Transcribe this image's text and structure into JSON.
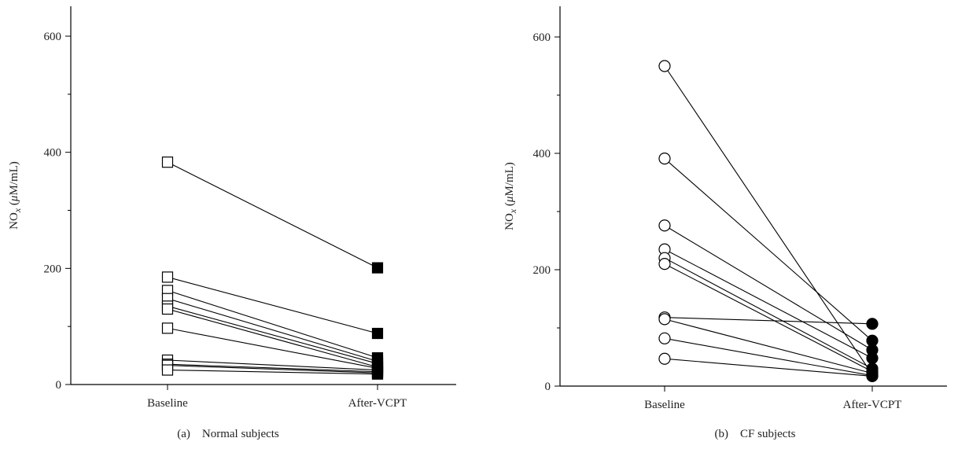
{
  "chart_data": [
    {
      "type": "line",
      "panel": "a",
      "caption_prefix": "(a)",
      "caption": "Normal subjects",
      "categories": [
        "Baseline",
        "After-VCPT"
      ],
      "ylabel_main": "NO",
      "ylabel_sub": "x",
      "ylabel_unit_open": " (",
      "ylabel_mu": "μ",
      "ylabel_unit_rest": "M/mL)",
      "ylim": [
        0,
        650
      ],
      "yticks": [
        0,
        200,
        400,
        600
      ],
      "marker_baseline": "open-square",
      "marker_after": "filled-square",
      "subjects": [
        {
          "baseline": 383,
          "after": 201
        },
        {
          "baseline": 185,
          "after": 88
        },
        {
          "baseline": 162,
          "after": 46
        },
        {
          "baseline": 148,
          "after": 40
        },
        {
          "baseline": 135,
          "after": 36
        },
        {
          "baseline": 130,
          "after": 30
        },
        {
          "baseline": 97,
          "after": 28
        },
        {
          "baseline": 42,
          "after": 25
        },
        {
          "baseline": 35,
          "after": 22
        },
        {
          "baseline": 33,
          "after": 20
        },
        {
          "baseline": 25,
          "after": 18
        }
      ]
    },
    {
      "type": "line",
      "panel": "b",
      "caption_prefix": "(b)",
      "caption": "CF subjects",
      "categories": [
        "Baseline",
        "After-VCPT"
      ],
      "ylabel_main": "NO",
      "ylabel_sub": "x",
      "ylabel_unit_open": " (",
      "ylabel_mu": "μ",
      "ylabel_unit_rest": "M/mL)",
      "ylim": [
        0,
        650
      ],
      "yticks": [
        0,
        200,
        400,
        600
      ],
      "marker_baseline": "open-circle",
      "marker_after": "filled-circle",
      "subjects": [
        {
          "baseline": 550,
          "after": 20
        },
        {
          "baseline": 391,
          "after": 78
        },
        {
          "baseline": 276,
          "after": 62
        },
        {
          "baseline": 235,
          "after": 48
        },
        {
          "baseline": 220,
          "after": 30
        },
        {
          "baseline": 210,
          "after": 25
        },
        {
          "baseline": 118,
          "after": 107
        },
        {
          "baseline": 115,
          "after": 22
        },
        {
          "baseline": 82,
          "after": 18
        },
        {
          "baseline": 47,
          "after": 17
        }
      ]
    }
  ]
}
